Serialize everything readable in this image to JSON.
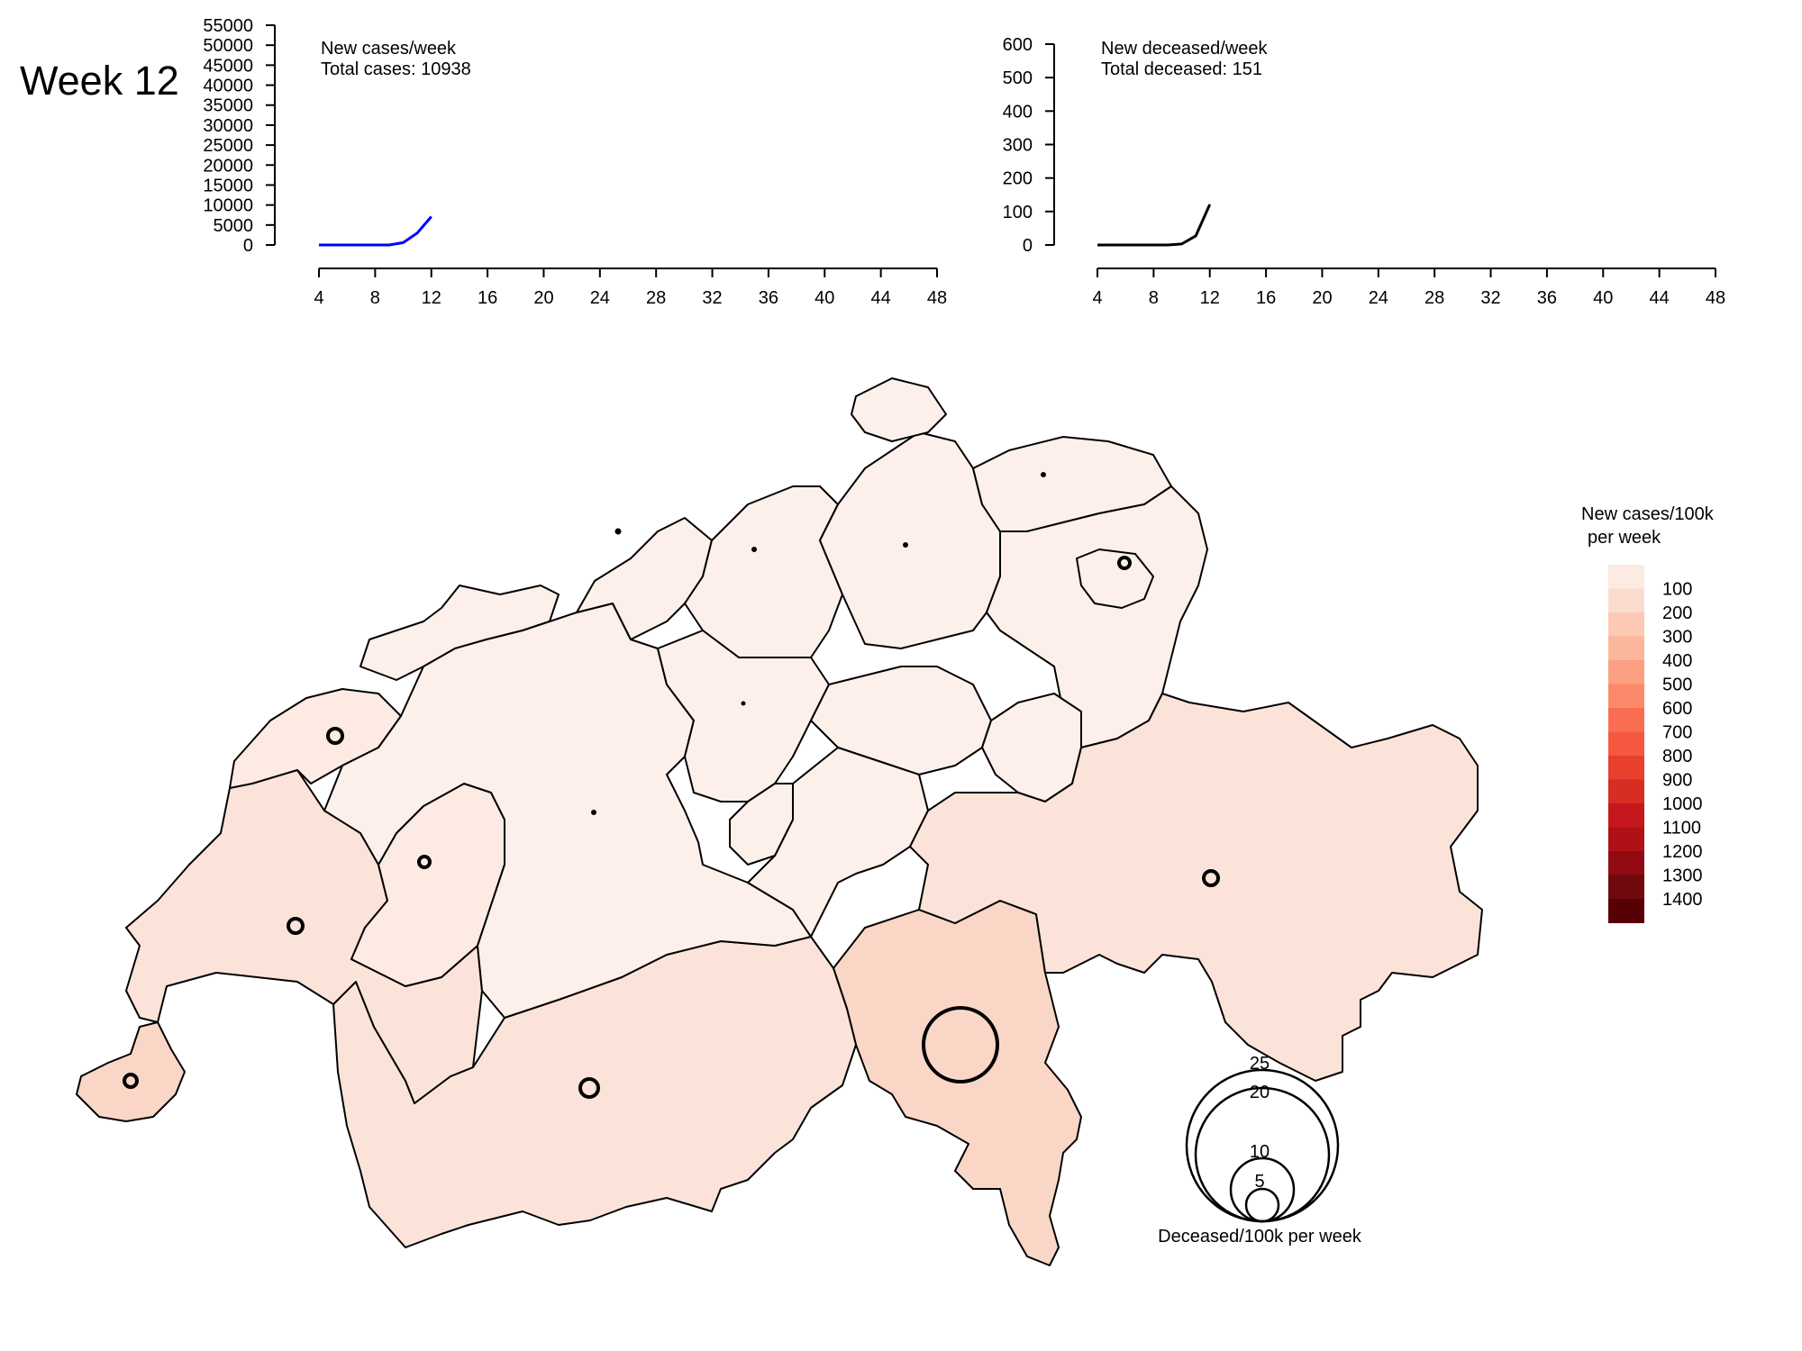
{
  "header": {
    "week_label": "Week 12"
  },
  "chart_data": [
    {
      "type": "line",
      "title": "New cases/week",
      "subtitle": "Total cases: 10938",
      "x": [
        4,
        5,
        6,
        7,
        8,
        9,
        10,
        11,
        12
      ],
      "series": [
        {
          "values": [
            0,
            0,
            0,
            0,
            0,
            0,
            600,
            3000,
            7100
          ],
          "color": "#0000ff"
        }
      ],
      "xlim": [
        4,
        48
      ],
      "x_ticks": [
        4,
        8,
        12,
        16,
        20,
        24,
        28,
        32,
        36,
        40,
        44,
        48
      ],
      "ylim": [
        0,
        55000
      ],
      "y_ticks": [
        0,
        5000,
        10000,
        15000,
        20000,
        25000,
        30000,
        35000,
        40000,
        45000,
        50000,
        55000
      ],
      "grid": false
    },
    {
      "type": "line",
      "title": "New deceased/week",
      "subtitle": "Total deceased: 151",
      "x": [
        4,
        5,
        6,
        7,
        8,
        9,
        10,
        11,
        12
      ],
      "series": [
        {
          "values": [
            0,
            0,
            0,
            0,
            0,
            0,
            3,
            27,
            121
          ],
          "color": "#000000"
        }
      ],
      "xlim": [
        4,
        48
      ],
      "x_ticks": [
        4,
        8,
        12,
        16,
        20,
        24,
        28,
        32,
        36,
        40,
        44,
        48
      ],
      "ylim": [
        0,
        600
      ],
      "y_ticks": [
        0,
        100,
        200,
        300,
        400,
        500,
        600
      ],
      "grid": false
    }
  ],
  "map": {
    "color_legend": {
      "title_line1": "New cases/100k",
      "title_line2": "per week",
      "labels": [
        "100",
        "200",
        "300",
        "400",
        "500",
        "600",
        "700",
        "800",
        "900",
        "1000",
        "1100",
        "1200",
        "1300",
        "1400"
      ],
      "colors": [
        "#fdeae3",
        "#fcdbcf",
        "#fcc9b4",
        "#fcb69b",
        "#fca083",
        "#fc8a6a",
        "#f96e52",
        "#f4593f",
        "#e9402e",
        "#d72d23",
        "#c5171c",
        "#af1117",
        "#920a12",
        "#6f0a0e",
        "#570006"
      ]
    },
    "size_legend": {
      "title": "Deceased/100k per week",
      "labels": [
        "25",
        "20",
        "10",
        "5"
      ]
    }
  }
}
